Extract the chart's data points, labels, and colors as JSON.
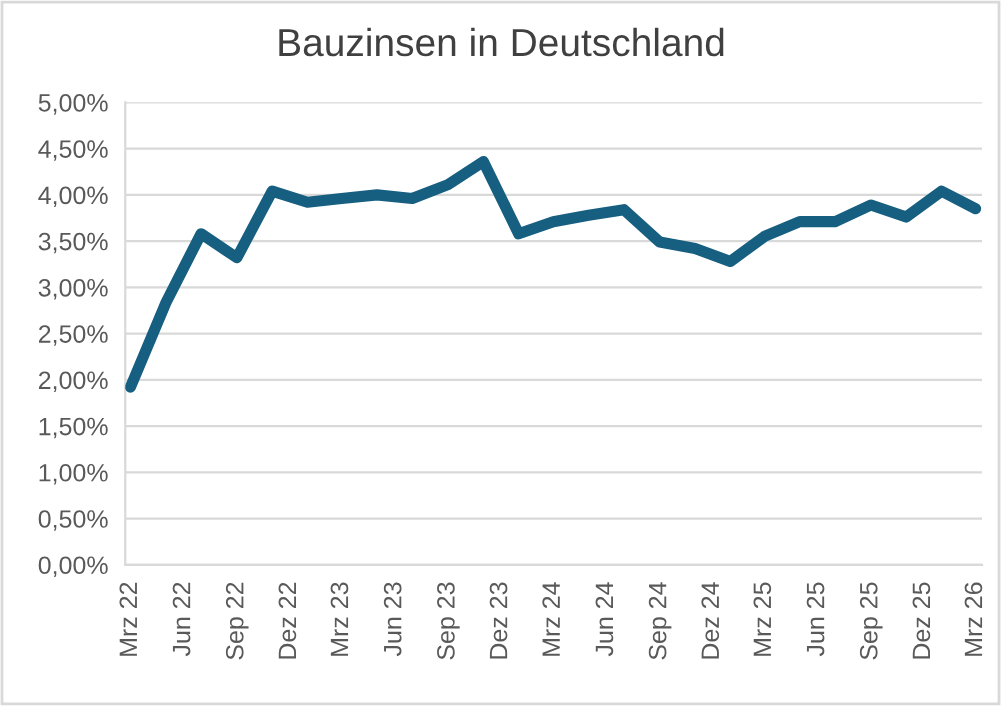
{
  "chart_data": {
    "type": "line",
    "title": "Bauzinsen in Deutschland",
    "x": [
      "2022-03",
      "2022-05",
      "2022-07",
      "2022-09",
      "2022-11",
      "2023-01",
      "2023-03",
      "2023-05",
      "2023-07",
      "2023-09",
      "2023-11",
      "2024-01",
      "2024-03",
      "2024-05",
      "2024-07",
      "2024-09",
      "2024-11",
      "2025-01",
      "2025-03",
      "2025-05",
      "2025-07",
      "2025-09",
      "2025-11",
      "2026-01",
      "2026-03"
    ],
    "series": [
      {
        "color": "#175f80",
        "values": [
          1.92,
          2.83,
          3.58,
          3.32,
          4.04,
          3.92,
          3.96,
          4.0,
          3.96,
          4.11,
          4.36,
          3.58,
          3.71,
          3.78,
          3.84,
          3.49,
          3.42,
          3.28,
          3.55,
          3.71,
          3.71,
          3.89,
          3.76,
          4.04,
          3.85
        ]
      }
    ],
    "xlim": [
      "2022-02-20",
      "2026-03-12"
    ],
    "xticks": [
      {
        "value": "2022-03",
        "label": "Mrz 22"
      },
      {
        "value": "2022-06",
        "label": "Jun 22"
      },
      {
        "value": "2022-09",
        "label": "Sep 22"
      },
      {
        "value": "2022-12",
        "label": "Dez 22"
      },
      {
        "value": "2023-03",
        "label": "Mrz 23"
      },
      {
        "value": "2023-06",
        "label": "Jun 23"
      },
      {
        "value": "2023-09",
        "label": "Sep 23"
      },
      {
        "value": "2023-12",
        "label": "Dez 23"
      },
      {
        "value": "2024-03",
        "label": "Mrz 24"
      },
      {
        "value": "2024-06",
        "label": "Jun 24"
      },
      {
        "value": "2024-09",
        "label": "Sep 24"
      },
      {
        "value": "2024-12",
        "label": "Dez 24"
      },
      {
        "value": "2025-03",
        "label": "Mrz 25"
      },
      {
        "value": "2025-06",
        "label": "Jun 25"
      },
      {
        "value": "2025-09",
        "label": "Sep 25"
      },
      {
        "value": "2025-12",
        "label": "Dez 25"
      },
      {
        "value": "2026-03",
        "label": "Mrz 26"
      }
    ],
    "ylim": [
      0,
      5
    ],
    "yticks": [
      {
        "value": 0,
        "label": "0,00%"
      },
      {
        "value": 0.5,
        "label": "0,50%"
      },
      {
        "value": 1,
        "label": "1,00%"
      },
      {
        "value": 1.5,
        "label": "1,50%"
      },
      {
        "value": 2,
        "label": "2,00%"
      },
      {
        "value": 2.5,
        "label": "2,50%"
      },
      {
        "value": 3,
        "label": "3,00%"
      },
      {
        "value": 3.5,
        "label": "3,50%"
      },
      {
        "value": 4,
        "label": "4,00%"
      },
      {
        "value": 4.5,
        "label": "4,50%"
      },
      {
        "value": 5,
        "label": "5,00%"
      }
    ],
    "grid": "y",
    "marker": "none",
    "line_style": "solid"
  }
}
